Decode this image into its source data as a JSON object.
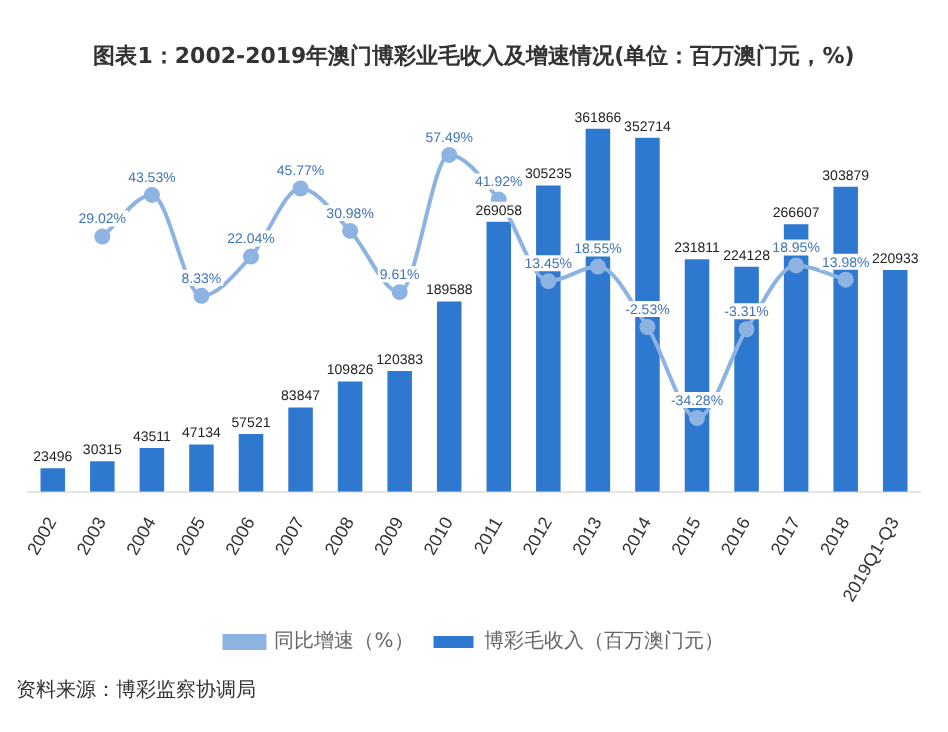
{
  "chart_data": {
    "type": "bar",
    "title": "图表1：2002-2019年澳门博彩业毛收入及增速情况(单位：百万澳门元，%)",
    "categories": [
      "2002",
      "2003",
      "2004",
      "2005",
      "2006",
      "2007",
      "2008",
      "2009",
      "2010",
      "2011",
      "2012",
      "2013",
      "2014",
      "2015",
      "2016",
      "2017",
      "2018",
      "2019Q1-Q3"
    ],
    "series": [
      {
        "name": "博彩毛收入（百万澳门元）",
        "color": "#2f78d0",
        "values": [
          23496,
          30315,
          43511,
          47134,
          57521,
          83847,
          109826,
          120383,
          189588,
          269058,
          305235,
          361866,
          352714,
          231811,
          224128,
          266607,
          303879,
          220933
        ],
        "value_labels": [
          "23496",
          "30315",
          "43511",
          "47134",
          "57521",
          "83847",
          "109826",
          "120383",
          "189588",
          "269058",
          "305235",
          "361866",
          "352714",
          "231811",
          "224128",
          "266607",
          "303879",
          "220933"
        ]
      },
      {
        "name": "同比增速（%）",
        "type": "line",
        "axis": "y2",
        "color": "#8db3e2",
        "values": [
          null,
          29.02,
          43.53,
          8.33,
          22.04,
          45.77,
          30.98,
          9.61,
          57.49,
          41.92,
          13.45,
          18.55,
          -2.53,
          -34.28,
          -3.31,
          18.95,
          13.98,
          null
        ],
        "value_labels": [
          null,
          "29.02%",
          "43.53%",
          "8.33%",
          "22.04%",
          "45.77%",
          "30.98%",
          "9.61%",
          "57.49%",
          "41.92%",
          "13.45%",
          "18.55%",
          "-2.53%",
          "-34.28%",
          "-3.31%",
          "18.95%",
          "13.98%",
          null
        ]
      }
    ],
    "marker": "circle",
    "grid": false,
    "legend": "bottom",
    "annotations": [
      "资料来源：博彩监察协调局"
    ]
  }
}
